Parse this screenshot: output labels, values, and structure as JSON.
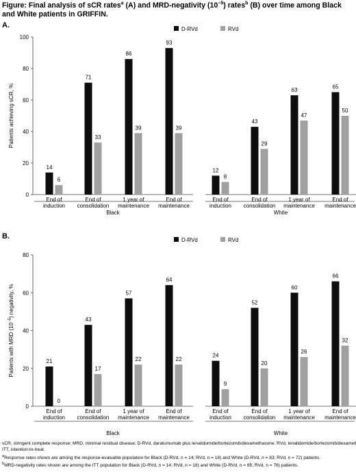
{
  "figure_title_parts": {
    "a": "Figure: Final analysis of sCR rates",
    "a_sup": "a",
    "b": " (A) and MRD-negativity (10",
    "b_sup": "−5",
    "c": ") rates",
    "c_sup": "b",
    "d": " (B) over time among Black and White patients in GRIFFIN."
  },
  "legend": {
    "drvd": "D-RVd",
    "rvd": "RVd"
  },
  "colors": {
    "drvd": "#0d0d0d",
    "rvd": "#a0a0a0",
    "axis": "#444444"
  },
  "chart_data": [
    {
      "type": "bar",
      "panel_label": "A.",
      "ylabel": "Patients achieving sCR, %",
      "ylim": [
        0,
        100
      ],
      "yticks": [
        "0",
        "20",
        "40",
        "60",
        "80",
        "100"
      ],
      "groups": [
        "Black",
        "White"
      ],
      "categories": [
        [
          "End of",
          "induction"
        ],
        [
          "End of",
          "consolidation"
        ],
        [
          "1 year of",
          "maintenance"
        ],
        [
          "End of",
          "maintenance"
        ]
      ],
      "legend_position": "top-right",
      "series": [
        {
          "name": "D-RVd",
          "values": {
            "Black": [
              14,
              71,
              86,
              93
            ],
            "White": [
              12,
              43,
              63,
              65
            ]
          }
        },
        {
          "name": "RVd",
          "values": {
            "Black": [
              6,
              33,
              39,
              39
            ],
            "White": [
              8,
              29,
              47,
              50
            ]
          }
        }
      ]
    },
    {
      "type": "bar",
      "panel_label": "B.",
      "ylabel_parts": [
        "Patients with MRD (10",
        "−5",
        ") negativity, %"
      ],
      "ylim": [
        0,
        80
      ],
      "yticks": [
        "0",
        "20",
        "40",
        "60",
        "80"
      ],
      "groups": [
        "Black",
        "White"
      ],
      "categories": [
        [
          "End of",
          "induction"
        ],
        [
          "End of",
          "consolidation"
        ],
        [
          "1 year of",
          "maintenance"
        ],
        [
          "End of",
          "maintenance"
        ]
      ],
      "legend_position": "top-right",
      "series": [
        {
          "name": "D-RVd",
          "values": {
            "Black": [
              21,
              43,
              57,
              64
            ],
            "White": [
              24,
              52,
              60,
              66
            ]
          }
        },
        {
          "name": "RVd",
          "values": {
            "Black": [
              0,
              17,
              22,
              22
            ],
            "White": [
              9,
              20,
              26,
              32
            ]
          }
        }
      ]
    }
  ],
  "footer": {
    "line1": "sCR, stringent complete response; MRD, minimal residual disease; D-RVd, daratumumab plus lenalidomide/bortezomib/dexamethasone; RVd, lenalidomide/bortezomib/dexamethasone;",
    "line2": "ITT, intention-to-treat.",
    "line3_sup": "a",
    "line3": "Response rates shown are among the response-evaluable population for Black (D-RVd, n = 14; RVd, n = 18) and White (D-RVd, n = 83; RVd, n = 72) patients.",
    "line4_sup": "b",
    "line4": "MRD-negativity rates shown are among the ITT population for Black (D-RVd, n = 14; RVd, n = 18) and White (D-RVd, n = 85; RVd, n = 76) patients."
  }
}
